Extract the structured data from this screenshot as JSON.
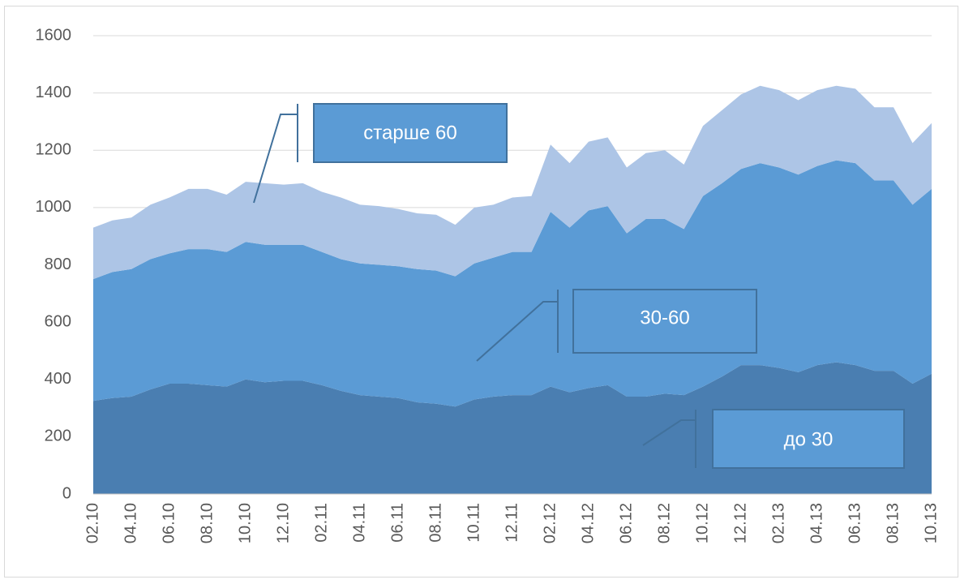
{
  "chart_data": {
    "type": "stacked_area",
    "categories": [
      "02.10",
      null,
      "04.10",
      null,
      "06.10",
      null,
      "08.10",
      null,
      "10.10",
      null,
      "12.10",
      null,
      "02.11",
      null,
      "04.11",
      null,
      "06.11",
      null,
      "08.11",
      null,
      "10.11",
      null,
      "12.11",
      null,
      "02.12",
      null,
      "04.12",
      null,
      "06.12",
      null,
      "08.12",
      null,
      "10.12",
      null,
      "12.12",
      null,
      "02.13",
      null,
      "04.13",
      null,
      "06.13",
      null,
      "08.13",
      null,
      "10.13"
    ],
    "series": [
      {
        "name": "до 30",
        "color": "#4a7eb1",
        "values": [
          325,
          335,
          340,
          365,
          385,
          385,
          380,
          375,
          400,
          390,
          395,
          395,
          380,
          360,
          345,
          340,
          335,
          320,
          315,
          305,
          330,
          340,
          345,
          345,
          375,
          355,
          370,
          380,
          340,
          340,
          350,
          345,
          375,
          410,
          450,
          450,
          440,
          425,
          450,
          460,
          450,
          430,
          430,
          385,
          420
        ]
      },
      {
        "name": "30-60",
        "color": "#5b9bd5",
        "values": [
          425,
          440,
          445,
          455,
          455,
          470,
          475,
          470,
          480,
          480,
          475,
          475,
          465,
          460,
          460,
          460,
          460,
          465,
          465,
          455,
          475,
          485,
          500,
          500,
          610,
          575,
          620,
          625,
          570,
          620,
          610,
          580,
          665,
          675,
          685,
          705,
          700,
          690,
          695,
          705,
          705,
          665,
          665,
          625,
          645
        ]
      },
      {
        "name": "старше 60",
        "color": "#adc5e6",
        "values": [
          180,
          180,
          180,
          190,
          195,
          210,
          210,
          200,
          210,
          215,
          210,
          215,
          210,
          215,
          205,
          205,
          200,
          195,
          195,
          180,
          195,
          185,
          190,
          195,
          235,
          225,
          240,
          240,
          230,
          230,
          240,
          225,
          245,
          255,
          260,
          270,
          270,
          260,
          265,
          260,
          260,
          255,
          255,
          215,
          230
        ]
      }
    ],
    "ylim": [
      0,
      1600
    ],
    "yticks": [
      0,
      200,
      400,
      600,
      800,
      1000,
      1200,
      1400,
      1600
    ],
    "grid": true
  }
}
